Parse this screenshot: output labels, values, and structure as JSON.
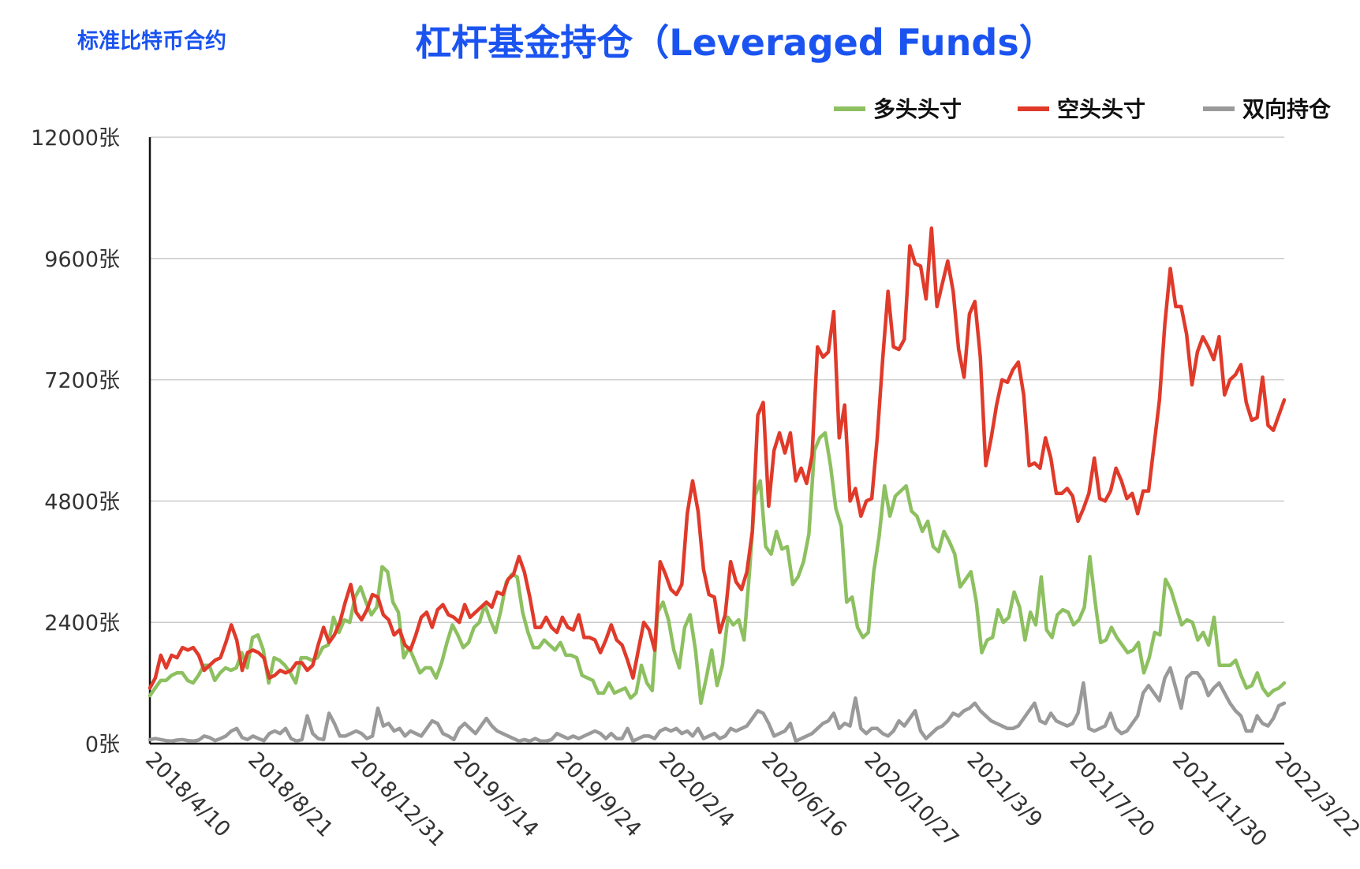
{
  "header": {
    "corner_label": "标准比特币合约",
    "title": "杠杆基金持仓（Leveraged Funds）"
  },
  "chart_data": {
    "type": "line",
    "title": "杠杆基金持仓（Leveraged Funds）",
    "xlabel": "",
    "ylabel": "",
    "ylim": [
      0,
      12000
    ],
    "y_ticks": [
      {
        "value": 0,
        "label": "0张"
      },
      {
        "value": 2400,
        "label": "2400张"
      },
      {
        "value": 4800,
        "label": "4800张"
      },
      {
        "value": 7200,
        "label": "7200张"
      },
      {
        "value": 9600,
        "label": "9600张"
      },
      {
        "value": 12000,
        "label": "12000张"
      }
    ],
    "x_tick_labels": [
      "2018/4/10",
      "2018/8/21",
      "2018/12/31",
      "2019/5/14",
      "2019/9/24",
      "2020/2/4",
      "2020/6/16",
      "2020/10/27",
      "2021/3/9",
      "2021/7/20",
      "2021/11/30",
      "2022/3/22"
    ],
    "grid": true,
    "legend_position": "top-right",
    "series": [
      {
        "name": "多头头寸",
        "color": "#8dc060",
        "values": [
          950,
          1100,
          1250,
          1250,
          1350,
          1400,
          1400,
          1250,
          1200,
          1350,
          1550,
          1550,
          1250,
          1400,
          1500,
          1450,
          1500,
          1800,
          1500,
          2100,
          2150,
          1850,
          1200,
          1700,
          1650,
          1550,
          1400,
          1200,
          1700,
          1700,
          1650,
          1700,
          1900,
          1950,
          2500,
          2200,
          2450,
          2400,
          2900,
          3100,
          2800,
          2550,
          2700,
          3500,
          3400,
          2800,
          2600,
          1700,
          1900,
          1650,
          1400,
          1500,
          1500,
          1300,
          1600,
          2000,
          2350,
          2150,
          1900,
          2000,
          2300,
          2400,
          2750,
          2450,
          2200,
          2650,
          3200,
          3350,
          3300,
          2600,
          2200,
          1900,
          1900,
          2050,
          1950,
          1850,
          2000,
          1750,
          1750,
          1700,
          1350,
          1300,
          1250,
          1000,
          1000,
          1200,
          1000,
          1050,
          1100,
          900,
          1000,
          1550,
          1200,
          1050,
          2600,
          2800,
          2450,
          1850,
          1500,
          2300,
          2550,
          1850,
          800,
          1300,
          1850,
          1150,
          1550,
          2500,
          2350,
          2450,
          2050,
          3400,
          4900,
          5200,
          3900,
          3750,
          4200,
          3850,
          3900,
          3150,
          3300,
          3600,
          4150,
          5800,
          6050,
          6150,
          5500,
          4650,
          4300,
          2800,
          2900,
          2300,
          2100,
          2200,
          3400,
          4100,
          5100,
          4500,
          4900,
          5000,
          5100,
          4600,
          4500,
          4200,
          4400,
          3900,
          3800,
          4200,
          4000,
          3750,
          3100,
          3250,
          3400,
          2800,
          1800,
          2050,
          2100,
          2650,
          2400,
          2500,
          3000,
          2700,
          2050,
          2600,
          2350,
          3300,
          2250,
          2100,
          2550,
          2650,
          2600,
          2350,
          2450,
          2700,
          3700,
          2800,
          2000,
          2050,
          2300,
          2100,
          1950,
          1800,
          1850,
          2000,
          1400,
          1700,
          2200,
          2150,
          3250,
          3050,
          2700,
          2350,
          2450,
          2400,
          2050,
          2200,
          1950,
          2500,
          1550,
          1550,
          1550,
          1650,
          1350,
          1100,
          1150,
          1400,
          1100,
          950,
          1050,
          1100,
          1200
        ]
      },
      {
        "name": "空头头寸",
        "color": "#e03a2a",
        "values": [
          1100,
          1300,
          1750,
          1500,
          1750,
          1700,
          1900,
          1850,
          1900,
          1750,
          1450,
          1550,
          1650,
          1700,
          2000,
          2350,
          2050,
          1450,
          1800,
          1850,
          1800,
          1700,
          1300,
          1350,
          1450,
          1400,
          1450,
          1600,
          1600,
          1450,
          1550,
          1950,
          2300,
          2000,
          2150,
          2400,
          2800,
          3150,
          2600,
          2450,
          2650,
          2950,
          2900,
          2550,
          2450,
          2150,
          2250,
          1950,
          1850,
          2150,
          2500,
          2600,
          2300,
          2650,
          2750,
          2550,
          2500,
          2400,
          2750,
          2500,
          2600,
          2700,
          2800,
          2700,
          3000,
          2950,
          3250,
          3350,
          3700,
          3400,
          2900,
          2300,
          2300,
          2500,
          2300,
          2200,
          2500,
          2300,
          2250,
          2550,
          2100,
          2100,
          2050,
          1800,
          2050,
          2350,
          2050,
          1950,
          1650,
          1300,
          1850,
          2400,
          2250,
          1850,
          3600,
          3350,
          3050,
          2950,
          3150,
          4550,
          5200,
          4600,
          3450,
          2950,
          2900,
          2200,
          2550,
          3600,
          3200,
          3050,
          3400,
          4200,
          6500,
          6750,
          4700,
          5800,
          6150,
          5750,
          6150,
          5200,
          5450,
          5150,
          5700,
          7850,
          7650,
          7750,
          8550,
          6050,
          6700,
          4800,
          5050,
          4500,
          4800,
          4850,
          6050,
          7600,
          8950,
          7850,
          7800,
          8000,
          9850,
          9500,
          9450,
          8800,
          10200,
          8650,
          9100,
          9550,
          8950,
          7800,
          7250,
          8500,
          8750,
          7650,
          5500,
          6050,
          6700,
          7200,
          7150,
          7400,
          7550,
          6900,
          5500,
          5550,
          5450,
          6050,
          5650,
          4950,
          4950,
          5050,
          4900,
          4400,
          4650,
          4950,
          5650,
          4850,
          4800,
          5000,
          5450,
          5200,
          4850,
          4950,
          4550,
          5000,
          5000,
          5900,
          6800,
          8300,
          9400,
          8650,
          8650,
          8100,
          7100,
          7750,
          8050,
          7850,
          7600,
          8050,
          6900,
          7200,
          7300,
          7500,
          6750,
          6400,
          6450,
          7250,
          6300,
          6200,
          6500,
          6800
        ]
      },
      {
        "name": "双向持仓",
        "color": "#9a9a9a",
        "values": [
          80,
          100,
          80,
          60,
          50,
          70,
          80,
          60,
          50,
          70,
          150,
          120,
          60,
          100,
          150,
          250,
          300,
          120,
          80,
          150,
          100,
          60,
          200,
          250,
          200,
          300,
          100,
          50,
          80,
          550,
          200,
          100,
          80,
          600,
          400,
          150,
          150,
          200,
          250,
          200,
          100,
          150,
          700,
          350,
          400,
          250,
          300,
          150,
          250,
          200,
          150,
          300,
          450,
          400,
          200,
          150,
          80,
          300,
          400,
          300,
          200,
          350,
          500,
          350,
          250,
          200,
          150,
          100,
          50,
          80,
          50,
          100,
          50,
          50,
          80,
          200,
          150,
          100,
          150,
          100,
          150,
          200,
          250,
          200,
          100,
          200,
          100,
          100,
          300,
          50,
          100,
          150,
          150,
          100,
          250,
          300,
          250,
          300,
          200,
          250,
          150,
          300,
          100,
          150,
          200,
          100,
          150,
          300,
          250,
          300,
          350,
          500,
          650,
          600,
          400,
          150,
          200,
          250,
          400,
          50,
          100,
          150,
          200,
          300,
          400,
          450,
          600,
          300,
          400,
          350,
          900,
          300,
          200,
          300,
          300,
          200,
          150,
          250,
          450,
          350,
          500,
          650,
          250,
          100,
          200,
          300,
          350,
          450,
          600,
          550,
          650,
          700,
          800,
          650,
          550,
          450,
          400,
          350,
          300,
          300,
          350,
          500,
          650,
          800,
          450,
          400,
          600,
          450,
          400,
          350,
          400,
          600,
          1200,
          300,
          250,
          300,
          350,
          600,
          300,
          200,
          250,
          400,
          550,
          1000,
          1150,
          1000,
          850,
          1300,
          1500,
          1100,
          700,
          1300,
          1400,
          1400,
          1250,
          950,
          1100,
          1200,
          1000,
          800,
          650,
          550,
          250,
          250,
          550,
          400,
          350,
          500,
          750,
          800
        ]
      }
    ]
  }
}
